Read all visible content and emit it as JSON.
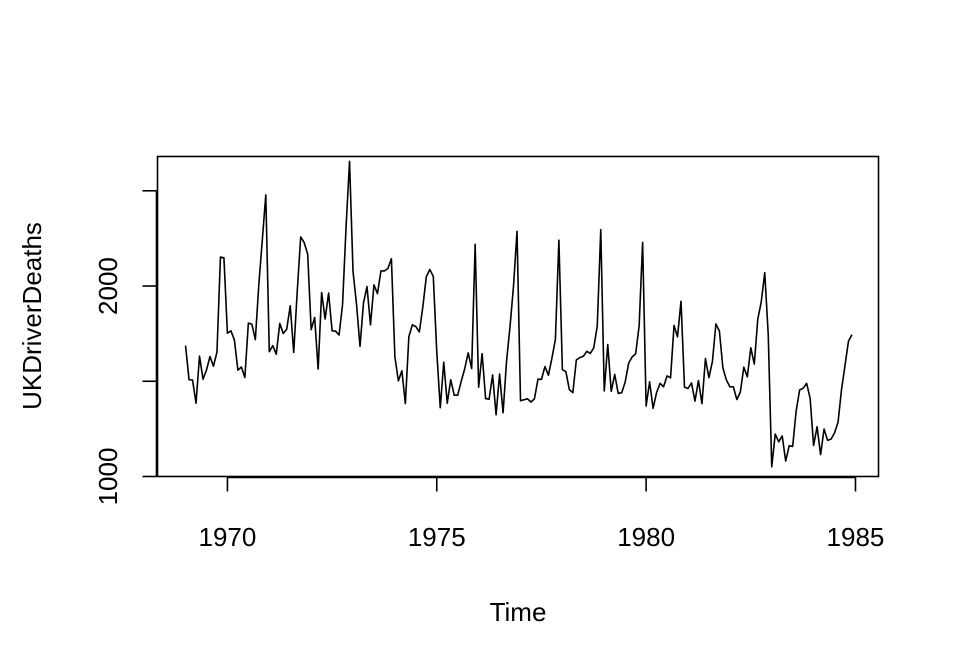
{
  "chart_data": {
    "type": "line",
    "title": "",
    "xlabel": "Time",
    "ylabel": "UKDriverDeaths",
    "xlim": [
      1968.33,
      1985.55
    ],
    "ylim": [
      1000,
      2680
    ],
    "x_ticks": [
      1970,
      1975,
      1980,
      1985
    ],
    "y_ticks": [
      1000,
      1500,
      2000,
      2500
    ],
    "y_tick_labels": [
      "1000",
      "",
      "2000",
      ""
    ],
    "x_start": 1969,
    "frequency": 12,
    "grid": false,
    "legend": "none",
    "line_color": "#000000",
    "series": [
      {
        "values": [
          1687,
          1508,
          1507,
          1385,
          1632,
          1511,
          1559,
          1630,
          1579,
          1653,
          2152,
          2148,
          1752,
          1765,
          1717,
          1558,
          1575,
          1520,
          1805,
          1800,
          1719,
          2008,
          2242,
          2478,
          1655,
          1687,
          1642,
          1803,
          1751,
          1774,
          1896,
          1651,
          1970,
          2258,
          2228,
          2168,
          1771,
          1835,
          1564,
          1966,
          1827,
          1963,
          1765,
          1763,
          1743,
          1904,
          2309,
          2655,
          2076,
          1905,
          1683,
          1912,
          1997,
          1796,
          2006,
          1960,
          2079,
          2079,
          2092,
          2143,
          1627,
          1502,
          1555,
          1383,
          1734,
          1796,
          1787,
          1759,
          1890,
          2048,
          2087,
          2051,
          1654,
          1361,
          1600,
          1385,
          1508,
          1427,
          1427,
          1500,
          1565,
          1649,
          1567,
          2219,
          1469,
          1645,
          1409,
          1406,
          1533,
          1324,
          1538,
          1334,
          1606,
          1788,
          2001,
          2287,
          1398,
          1403,
          1408,
          1391,
          1408,
          1511,
          1510,
          1577,
          1532,
          1621,
          1720,
          2241,
          1561,
          1551,
          1456,
          1440,
          1612,
          1624,
          1631,
          1657,
          1646,
          1676,
          1791,
          2296,
          1449,
          1693,
          1447,
          1536,
          1436,
          1440,
          1496,
          1595,
          1628,
          1644,
          1791,
          2229,
          1370,
          1497,
          1358,
          1441,
          1489,
          1471,
          1528,
          1518,
          1793,
          1733,
          1920,
          1469,
          1462,
          1491,
          1396,
          1504,
          1382,
          1619,
          1519,
          1604,
          1801,
          1764,
          1571,
          1507,
          1471,
          1471,
          1404,
          1443,
          1574,
          1523,
          1676,
          1590,
          1826,
          1917,
          2070,
          1745,
          1051,
          1223,
          1182,
          1213,
          1081,
          1161,
          1158,
          1344,
          1455,
          1463,
          1489,
          1411,
          1163,
          1261,
          1115,
          1249,
          1190,
          1196,
          1229,
          1284,
          1456,
          1583,
          1711,
          1745
        ]
      }
    ]
  }
}
